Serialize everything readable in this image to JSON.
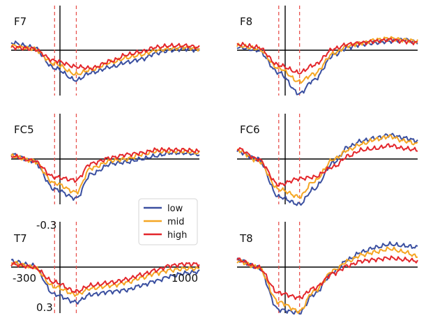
{
  "chart_data": {
    "type": "line",
    "x_range": [
      -300,
      1000
    ],
    "y_range": [
      -0.3,
      0.3
    ],
    "y_inverted": true,
    "x_tick_labels": [
      "-300",
      "1000"
    ],
    "y_tick_labels": [
      "-0.3",
      "0.3"
    ],
    "event_markers": [
      0,
      150
    ],
    "colors": {
      "low": "#3a4fa0",
      "mid": "#f5a623",
      "high": "#e3262b",
      "marker": "#e8534f"
    },
    "legend": {
      "placement": "center",
      "entries": [
        {
          "name": "low",
          "color": "#3a4fa0"
        },
        {
          "name": "mid",
          "color": "#f5a623"
        },
        {
          "name": "high",
          "color": "#e3262b"
        }
      ]
    },
    "panels": [
      {
        "name": "F7",
        "x": [
          -300,
          -150,
          0,
          150,
          250,
          400,
          500,
          600,
          700,
          800,
          900,
          1000
        ],
        "series": [
          {
            "name": "low",
            "values": [
              -0.05,
              -0.02,
              0.12,
              0.2,
              0.15,
              0.11,
              0.08,
              0.06,
              0.02,
              0.0,
              -0.01,
              0.0
            ]
          },
          {
            "name": "mid",
            "values": [
              -0.03,
              -0.01,
              0.09,
              0.16,
              0.13,
              0.08,
              0.05,
              0.03,
              0.0,
              -0.01,
              -0.02,
              -0.01
            ]
          },
          {
            "name": "high",
            "values": [
              -0.02,
              -0.01,
              0.07,
              0.11,
              0.12,
              0.07,
              0.03,
              0.01,
              -0.02,
              -0.03,
              -0.03,
              -0.02
            ]
          }
        ]
      },
      {
        "name": "F8",
        "x": [
          -300,
          -150,
          0,
          150,
          250,
          400,
          500,
          600,
          700,
          800,
          900,
          1000
        ],
        "series": [
          {
            "name": "low",
            "values": [
              -0.02,
              0.0,
              0.15,
              0.29,
              0.2,
              0.03,
              -0.02,
              -0.04,
              -0.05,
              -0.06,
              -0.07,
              -0.05
            ]
          },
          {
            "name": "mid",
            "values": [
              -0.03,
              -0.01,
              0.12,
              0.21,
              0.16,
              0.02,
              -0.03,
              -0.05,
              -0.07,
              -0.08,
              -0.07,
              -0.06
            ]
          },
          {
            "name": "high",
            "values": [
              -0.04,
              -0.02,
              0.1,
              0.15,
              0.1,
              -0.01,
              -0.04,
              -0.05,
              -0.06,
              -0.07,
              -0.06,
              -0.05
            ]
          }
        ]
      },
      {
        "name": "FC5",
        "x": [
          -300,
          -150,
          0,
          150,
          250,
          400,
          500,
          600,
          700,
          800,
          900,
          1000
        ],
        "series": [
          {
            "name": "low",
            "values": [
              -0.03,
              0.01,
              0.2,
              0.26,
              0.1,
              0.03,
              0.02,
              0.0,
              -0.02,
              -0.04,
              -0.04,
              -0.03
            ]
          },
          {
            "name": "mid",
            "values": [
              -0.02,
              0.01,
              0.16,
              0.22,
              0.06,
              0.01,
              0.0,
              -0.03,
              -0.05,
              -0.05,
              -0.05,
              -0.04
            ]
          },
          {
            "name": "high",
            "values": [
              -0.02,
              0.01,
              0.12,
              0.14,
              0.03,
              -0.01,
              -0.03,
              -0.04,
              -0.06,
              -0.06,
              -0.06,
              -0.05
            ]
          }
        ]
      },
      {
        "name": "FC6",
        "x": [
          -300,
          -150,
          0,
          150,
          250,
          400,
          500,
          600,
          700,
          800,
          900,
          1000
        ],
        "series": [
          {
            "name": "low",
            "values": [
              -0.05,
              0.0,
              0.25,
              0.3,
              0.2,
              0.02,
              -0.08,
              -0.12,
              -0.14,
              -0.16,
              -0.14,
              -0.12
            ]
          },
          {
            "name": "mid",
            "values": [
              -0.06,
              0.01,
              0.2,
              0.25,
              0.15,
              0.0,
              -0.06,
              -0.1,
              -0.13,
              -0.15,
              -0.12,
              -0.1
            ]
          },
          {
            "name": "high",
            "values": [
              -0.07,
              0.0,
              0.17,
              0.13,
              0.12,
              0.05,
              -0.02,
              -0.06,
              -0.07,
              -0.09,
              -0.07,
              -0.06
            ]
          }
        ]
      },
      {
        "name": "T7",
        "x": [
          -300,
          -150,
          0,
          150,
          250,
          400,
          500,
          600,
          700,
          800,
          900,
          1000
        ],
        "series": [
          {
            "name": "low",
            "values": [
              -0.04,
              -0.01,
              0.18,
              0.23,
              0.18,
              0.16,
              0.15,
              0.12,
              0.09,
              0.06,
              0.04,
              0.03
            ]
          },
          {
            "name": "mid",
            "values": [
              -0.03,
              0.0,
              0.13,
              0.18,
              0.14,
              0.12,
              0.1,
              0.07,
              0.04,
              0.02,
              0.01,
              0.01
            ]
          },
          {
            "name": "high",
            "values": [
              -0.02,
              0.0,
              0.1,
              0.16,
              0.12,
              0.1,
              0.08,
              0.05,
              0.02,
              -0.01,
              -0.02,
              -0.02
            ]
          }
        ]
      },
      {
        "name": "T8",
        "x": [
          -300,
          -150,
          0,
          150,
          250,
          400,
          500,
          600,
          700,
          800,
          900,
          1000
        ],
        "series": [
          {
            "name": "low",
            "values": [
              -0.05,
              0.0,
              0.28,
              0.3,
              0.18,
              0.03,
              -0.05,
              -0.1,
              -0.13,
              -0.15,
              -0.14,
              -0.13
            ]
          },
          {
            "name": "mid",
            "values": [
              -0.04,
              0.0,
              0.23,
              0.29,
              0.16,
              0.02,
              -0.04,
              -0.08,
              -0.1,
              -0.12,
              -0.1,
              -0.07
            ]
          },
          {
            "name": "high",
            "values": [
              -0.05,
              0.0,
              0.17,
              0.2,
              0.14,
              0.04,
              -0.01,
              -0.04,
              -0.05,
              -0.06,
              -0.05,
              -0.04
            ]
          }
        ]
      }
    ]
  }
}
